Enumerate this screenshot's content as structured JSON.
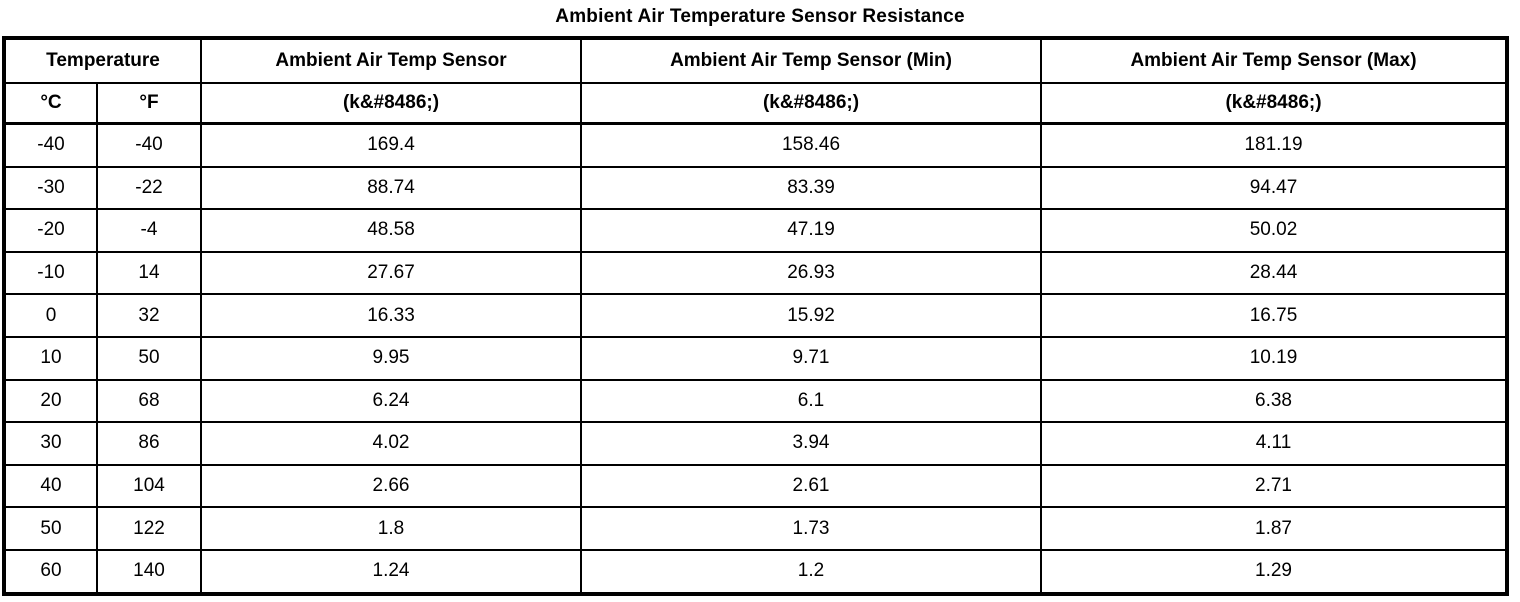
{
  "title": "Ambient Air Temperature Sensor Resistance",
  "table": {
    "header": {
      "temperature_group": "Temperature",
      "sensor": "Ambient Air Temp Sensor",
      "sensor_min": "Ambient Air Temp Sensor (Min)",
      "sensor_max": "Ambient Air Temp Sensor (Max)",
      "celsius": "°C",
      "fahrenheit": "°F",
      "unit_sensor": "(k&#8486;)",
      "unit_min": "(k&#8486;)",
      "unit_max": "(k&#8486;)"
    },
    "rows": [
      [
        "-40",
        "-40",
        "169.4",
        "158.46",
        "181.19"
      ],
      [
        "-30",
        "-22",
        "88.74",
        "83.39",
        "94.47"
      ],
      [
        "-20",
        "-4",
        "48.58",
        "47.19",
        "50.02"
      ],
      [
        "-10",
        "14",
        "27.67",
        "26.93",
        "28.44"
      ],
      [
        "0",
        "32",
        "16.33",
        "15.92",
        "16.75"
      ],
      [
        "10",
        "50",
        "9.95",
        "9.71",
        "10.19"
      ],
      [
        "20",
        "68",
        "6.24",
        "6.1",
        "6.38"
      ],
      [
        "30",
        "86",
        "4.02",
        "3.94",
        "4.11"
      ],
      [
        "40",
        "104",
        "2.66",
        "2.61",
        "2.71"
      ],
      [
        "50",
        "122",
        "1.8",
        "1.73",
        "1.87"
      ],
      [
        "60",
        "140",
        "1.24",
        "1.2",
        "1.29"
      ]
    ]
  },
  "colors": {
    "border": "#000000",
    "text": "#000000",
    "background": "#ffffff"
  }
}
